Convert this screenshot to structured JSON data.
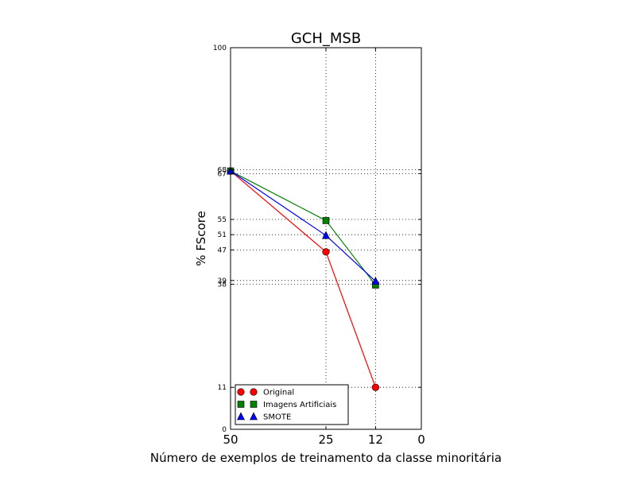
{
  "chart_data": {
    "type": "line",
    "title": "GCH_MSB",
    "xlabel": "Número de exemplos de treinamento da classe minoritária",
    "ylabel": "% FScore",
    "xlim": [
      50,
      0
    ],
    "ylim": [
      0,
      100
    ],
    "x_ticks": [
      50,
      25,
      12,
      0
    ],
    "y_ticks": [
      0,
      11,
      38,
      39,
      47,
      51,
      55,
      67,
      68,
      100
    ],
    "y_tick_labels": [
      "0",
      "11",
      "38",
      "39",
      "47",
      "51",
      "55",
      "67",
      "68",
      "100"
    ],
    "grid": "dotted",
    "legend_position": "lower-left",
    "series": [
      {
        "name": "Original",
        "x": [
          50,
          25,
          12
        ],
        "values": [
          67.7,
          46.5,
          11
        ],
        "color": "#ff0000",
        "marker": "circle"
      },
      {
        "name": "Imagens Artificiais",
        "x": [
          50,
          25,
          12
        ],
        "values": [
          67.7,
          54.7,
          37.8
        ],
        "color": "#008000",
        "marker": "square"
      },
      {
        "name": "SMOTE",
        "x": [
          50,
          25,
          12
        ],
        "values": [
          67.7,
          50.8,
          38.8
        ],
        "color": "#0000ff",
        "marker": "triangle"
      }
    ]
  }
}
